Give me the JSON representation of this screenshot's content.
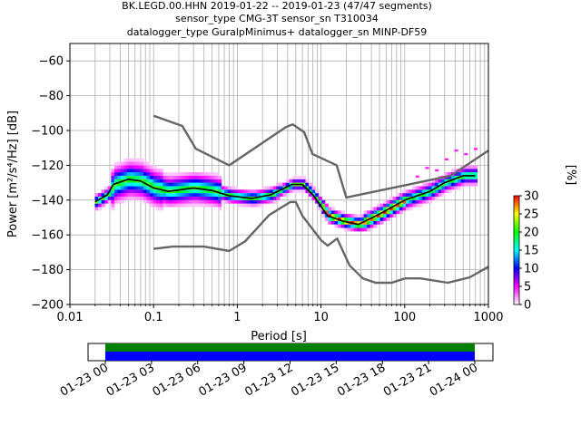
{
  "title": {
    "line1": "BK.LEGD.00.HHN   2019-01-22 -- 2019-01-23  (47/47 segments)",
    "line2": "sensor_type CMG-3T sensor_sn T310034",
    "line3": "datalogger_type GuralpMinimus+ datalogger_sn MINP-DF59"
  },
  "chart_data": [
    {
      "type": "heatmap",
      "subtype": "probabilistic-power-spectral-density",
      "xlabel": "Period [s]",
      "ylabel": "Power [m²/s⁴/Hz] [dB]",
      "xscale": "log",
      "xlim": [
        0.01,
        1000
      ],
      "ylim": [
        -200,
        -50
      ],
      "x_ticks": [
        0.01,
        0.1,
        1,
        10,
        100,
        1000
      ],
      "x_tick_labels": [
        "0.01",
        "0.1",
        "1",
        "10",
        "100",
        "1000"
      ],
      "y_ticks": [
        -200,
        -180,
        -160,
        -140,
        -120,
        -100,
        -80,
        -60
      ],
      "y_tick_labels": [
        "−200",
        "−180",
        "−160",
        "−140",
        "−120",
        "−100",
        "−80",
        "−60"
      ],
      "grid": true,
      "colorbar": {
        "label": "[%]",
        "range": [
          0,
          30
        ],
        "ticks": [
          0,
          5,
          10,
          15,
          20,
          25,
          30
        ],
        "tick_labels": [
          "0",
          "5",
          "10",
          "15",
          "20",
          "25",
          "30"
        ],
        "colormap": [
          "#ffffff",
          "#ff00ff",
          "#0000ff",
          "#00ffff",
          "#00ff00",
          "#ffff00",
          "#ff0000"
        ]
      },
      "series": [
        {
          "role": "noise-model-high",
          "color": "#666666",
          "points": [
            [
              0.1,
              -91.5
            ],
            [
              0.22,
              -97.4
            ],
            [
              0.32,
              -110.5
            ],
            [
              0.8,
              -120
            ],
            [
              3.8,
              -98
            ],
            [
              4.6,
              -96.5
            ],
            [
              6.3,
              -101
            ],
            [
              7.9,
              -113.5
            ],
            [
              15.4,
              -120
            ],
            [
              20,
              -138.5
            ],
            [
              354.8,
              -126
            ],
            [
              1000,
              -111.5
            ]
          ]
        },
        {
          "role": "noise-model-low",
          "color": "#666666",
          "points": [
            [
              0.1,
              -168
            ],
            [
              0.17,
              -166.7
            ],
            [
              0.4,
              -166.7
            ],
            [
              0.8,
              -169.2
            ],
            [
              1.24,
              -163.7
            ],
            [
              2.4,
              -148.6
            ],
            [
              4.3,
              -141.1
            ],
            [
              5,
              -141.1
            ],
            [
              6,
              -149
            ],
            [
              10,
              -163
            ],
            [
              12,
              -166.2
            ],
            [
              15.6,
              -162.1
            ],
            [
              21.9,
              -177.5
            ],
            [
              31.6,
              -185
            ],
            [
              45,
              -187.5
            ],
            [
              70,
              -187.5
            ],
            [
              101,
              -185
            ],
            [
              154,
              -185
            ],
            [
              328,
              -187.5
            ],
            [
              600,
              -184.4
            ],
            [
              1000,
              -178.3
            ]
          ]
        },
        {
          "role": "mean",
          "color": "#000000",
          "points": [
            [
              0.02,
              -141
            ],
            [
              0.028,
              -137
            ],
            [
              0.033,
              -131
            ],
            [
              0.05,
              -128
            ],
            [
              0.07,
              -129
            ],
            [
              0.1,
              -133
            ],
            [
              0.15,
              -135
            ],
            [
              0.3,
              -133
            ],
            [
              0.5,
              -134.5
            ],
            [
              0.8,
              -137.5
            ],
            [
              1.5,
              -139
            ],
            [
              2.5,
              -137
            ],
            [
              4.5,
              -131
            ],
            [
              6,
              -131
            ],
            [
              8,
              -137
            ],
            [
              12,
              -149
            ],
            [
              18,
              -152
            ],
            [
              28,
              -154
            ],
            [
              50,
              -148
            ],
            [
              100,
              -140
            ],
            [
              200,
              -135
            ],
            [
              300,
              -130
            ],
            [
              500,
              -126
            ],
            [
              700,
              -126
            ]
          ]
        }
      ],
      "density_band": {
        "period_range": [
          0.019,
          700
        ],
        "centre_line": "mean",
        "notes": "histogram cells coloured by % occurrence"
      }
    },
    {
      "type": "timeline",
      "role": "data-coverage",
      "x_tick_labels": [
        "01-23 00",
        "01-23 03",
        "01-23 06",
        "01-23 09",
        "01-23 12",
        "01-23 15",
        "01-23 18",
        "01-23 21",
        "01-24 00"
      ],
      "x_ticks_hours": [
        0,
        3,
        6,
        9,
        12,
        15,
        18,
        21,
        24
      ],
      "coverage_hours": [
        0,
        24
      ],
      "coverage_color": "#0000ff",
      "status_color": "#008000"
    }
  ]
}
